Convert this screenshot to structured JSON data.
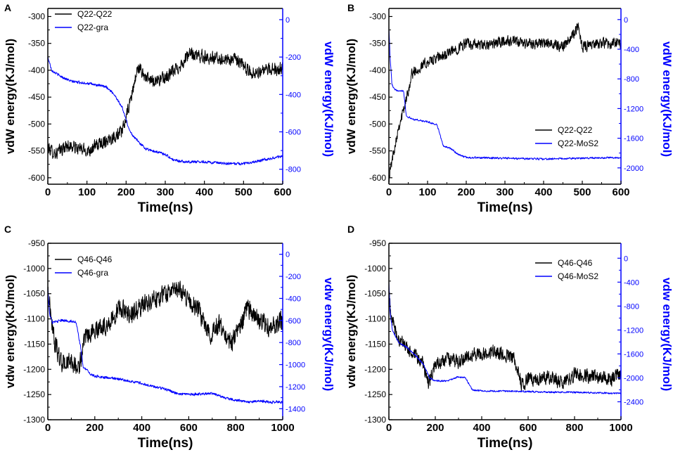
{
  "colors": {
    "black_series": "#000000",
    "blue_series": "#0000ff",
    "right_axis": "#0000ff"
  },
  "chart_data": [
    {
      "panel": "A",
      "type": "line",
      "xlabel": "Time(ns)",
      "ylabel": "vdW energy(KJ/mol)",
      "ylabel_right": "vdW energy(KJ/mol)",
      "xlim": [
        0,
        600
      ],
      "ylim": [
        -612,
        -285
      ],
      "ylim_right": [
        -880,
        60
      ],
      "xticks": [
        0,
        100,
        200,
        300,
        400,
        500,
        600
      ],
      "yticks": [
        -300,
        -350,
        -400,
        -450,
        -500,
        -550,
        -600
      ],
      "yticks_right": [
        0,
        -200,
        -400,
        -600,
        -800
      ],
      "legend_position": "top-left",
      "series": [
        {
          "name": "Q22-Q22",
          "axis": "left",
          "color": "#000000",
          "noise": 14,
          "x": [
            0,
            20,
            50,
            100,
            150,
            190,
            210,
            230,
            260,
            300,
            340,
            360,
            400,
            450,
            480,
            520,
            560,
            600
          ],
          "y": [
            -545,
            -555,
            -540,
            -550,
            -530,
            -515,
            -460,
            -395,
            -420,
            -415,
            -390,
            -370,
            -375,
            -380,
            -380,
            -405,
            -400,
            -395
          ]
        },
        {
          "name": "Q22-gra",
          "axis": "right",
          "color": "#0000ff",
          "noise": 8,
          "x": [
            0,
            10,
            30,
            60,
            100,
            150,
            170,
            190,
            210,
            230,
            250,
            300,
            320,
            350,
            400,
            450,
            500,
            550,
            600
          ],
          "y": [
            -200,
            -270,
            -300,
            -330,
            -340,
            -360,
            -400,
            -470,
            -600,
            -650,
            -690,
            -720,
            -750,
            -760,
            -760,
            -770,
            -770,
            -750,
            -730
          ]
        }
      ]
    },
    {
      "panel": "B",
      "type": "line",
      "xlabel": "Time(ns)",
      "ylabel": "vdW energy(KJ/mol)",
      "ylabel_right": "vdW energy(KJ/mol)",
      "xlim": [
        0,
        600
      ],
      "ylim": [
        -612,
        -285
      ],
      "ylim_right": [
        -2220,
        150
      ],
      "xticks": [
        0,
        100,
        200,
        300,
        400,
        500,
        600
      ],
      "yticks": [
        -300,
        -350,
        -400,
        -450,
        -500,
        -550,
        -600
      ],
      "yticks_right": [
        0,
        -400,
        -800,
        -1200,
        -1600,
        -2000
      ],
      "legend_position": "middle-right",
      "series": [
        {
          "name": "Q22-Q22",
          "axis": "left",
          "color": "#000000",
          "noise": 12,
          "x": [
            0,
            10,
            25,
            40,
            60,
            100,
            150,
            200,
            250,
            300,
            350,
            400,
            450,
            490,
            500,
            550,
            600
          ],
          "y": [
            -600,
            -560,
            -505,
            -470,
            -405,
            -385,
            -370,
            -350,
            -355,
            -345,
            -350,
            -350,
            -355,
            -320,
            -355,
            -350,
            -350
          ]
        },
        {
          "name": "Q22-MoS2",
          "axis": "right",
          "color": "#0000ff",
          "noise": 14,
          "x": [
            0,
            3,
            8,
            15,
            38,
            45,
            60,
            100,
            125,
            140,
            160,
            180,
            200,
            300,
            400,
            500,
            600
          ],
          "y": [
            -100,
            -500,
            -880,
            -950,
            -960,
            -1300,
            -1340,
            -1380,
            -1420,
            -1700,
            -1740,
            -1820,
            -1860,
            -1870,
            -1880,
            -1870,
            -1860
          ]
        }
      ]
    },
    {
      "panel": "C",
      "type": "line",
      "xlabel": "Time(ns)",
      "ylabel": "vdw energy(KJ/mol)",
      "ylabel_right": "vdw energy(KJ/mol)",
      "xlim": [
        0,
        1000
      ],
      "ylim": [
        -1300,
        -950
      ],
      "ylim_right": [
        -1500,
        100
      ],
      "xticks": [
        0,
        200,
        400,
        600,
        800,
        1000
      ],
      "yticks": [
        -950,
        -1000,
        -1050,
        -1100,
        -1150,
        -1200,
        -1250,
        -1300
      ],
      "yticks_right": [
        0,
        -200,
        -400,
        -600,
        -800,
        -1000,
        -1200,
        -1400
      ],
      "legend_position": "top-left",
      "series": [
        {
          "name": "Q46-Q46",
          "axis": "left",
          "color": "#000000",
          "noise": 22,
          "x": [
            0,
            10,
            30,
            60,
            100,
            130,
            160,
            200,
            260,
            300,
            360,
            400,
            450,
            500,
            550,
            600,
            650,
            690,
            730,
            780,
            850,
            900,
            950,
            1000
          ],
          "y": [
            -1040,
            -1080,
            -1150,
            -1190,
            -1185,
            -1200,
            -1140,
            -1120,
            -1110,
            -1080,
            -1090,
            -1075,
            -1060,
            -1050,
            -1040,
            -1060,
            -1090,
            -1130,
            -1110,
            -1150,
            -1080,
            -1100,
            -1120,
            -1100
          ]
        },
        {
          "name": "Q46-gra",
          "axis": "right",
          "color": "#0000ff",
          "noise": 14,
          "x": [
            0,
            8,
            20,
            60,
            120,
            140,
            150,
            170,
            190,
            250,
            300,
            350,
            400,
            450,
            500,
            560,
            620,
            700,
            750,
            800,
            850,
            900,
            950,
            1000
          ],
          "y": [
            -300,
            -550,
            -620,
            -600,
            -610,
            -850,
            -1020,
            -1060,
            -1100,
            -1120,
            -1130,
            -1150,
            -1170,
            -1200,
            -1220,
            -1270,
            -1270,
            -1260,
            -1300,
            -1320,
            -1340,
            -1330,
            -1340,
            -1340
          ]
        }
      ]
    },
    {
      "panel": "D",
      "type": "line",
      "xlabel": "Time(ns)",
      "ylabel": "vdw energy(KJ/mol)",
      "ylabel_right": "vdw energy(KJ/mol)",
      "xlim": [
        0,
        1000
      ],
      "ylim": [
        -1300,
        -950
      ],
      "ylim_right": [
        -2700,
        250
      ],
      "xticks": [
        0,
        200,
        400,
        600,
        800,
        1000
      ],
      "yticks": [
        -950,
        -1000,
        -1050,
        -1100,
        -1150,
        -1200,
        -1250,
        -1300
      ],
      "yticks_right": [
        0,
        -400,
        -800,
        -1200,
        -1600,
        -2000,
        -2400
      ],
      "legend_position": "top-right",
      "series": [
        {
          "name": "Q46-Q46",
          "axis": "left",
          "color": "#000000",
          "noise": 16,
          "x": [
            0,
            10,
            30,
            60,
            100,
            150,
            170,
            200,
            260,
            300,
            350,
            400,
            450,
            500,
            540,
            570,
            600,
            700,
            750,
            800,
            900,
            950,
            1000
          ],
          "y": [
            -1050,
            -1090,
            -1130,
            -1150,
            -1170,
            -1190,
            -1230,
            -1190,
            -1180,
            -1185,
            -1170,
            -1170,
            -1165,
            -1170,
            -1180,
            -1230,
            -1220,
            -1215,
            -1230,
            -1210,
            -1215,
            -1220,
            -1210
          ]
        },
        {
          "name": "Q46-MoS2",
          "axis": "right",
          "color": "#0000ff",
          "noise": 16,
          "x": [
            0,
            5,
            15,
            40,
            80,
            120,
            150,
            175,
            200,
            250,
            300,
            330,
            360,
            400,
            500,
            600,
            700,
            800,
            900,
            1000
          ],
          "y": [
            -400,
            -900,
            -1200,
            -1400,
            -1500,
            -1650,
            -1780,
            -2000,
            -2050,
            -2050,
            -1980,
            -2000,
            -2200,
            -2220,
            -2220,
            -2230,
            -2240,
            -2240,
            -2250,
            -2260
          ]
        }
      ]
    }
  ]
}
